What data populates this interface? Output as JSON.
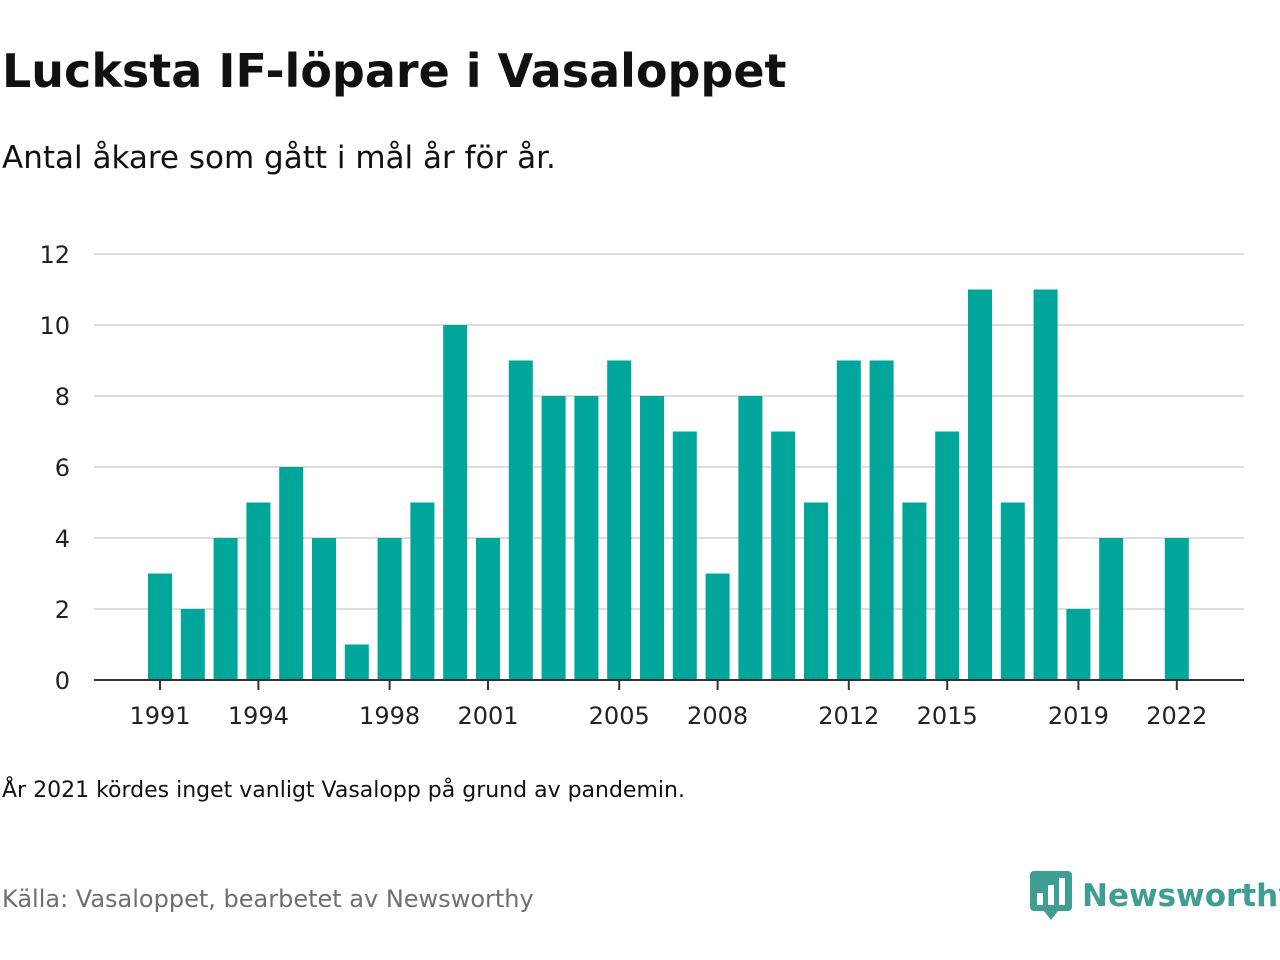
{
  "header": {
    "title": "Lucksta IF-löpare i Vasaloppet",
    "subtitle": "Antal åkare som gått i mål år för år."
  },
  "footer": {
    "note": "År 2021 kördes inget vanligt Vasalopp på grund av pandemin.",
    "source": "Källa: Vasaloppet, bearbetet av Newsworthy",
    "brand": "Newsworthy"
  },
  "colors": {
    "bar": "#00a699",
    "grid": "#dddddd",
    "baseline": "#333333",
    "brand": "#3f9d93"
  },
  "chart_data": {
    "type": "bar",
    "title": "Lucksta IF-löpare i Vasaloppet",
    "subtitle": "Antal åkare som gått i mål år för år.",
    "xlabel": "",
    "ylabel": "",
    "categories": [
      1991,
      1992,
      1993,
      1994,
      1995,
      1996,
      1997,
      1998,
      1999,
      2000,
      2001,
      2002,
      2003,
      2004,
      2005,
      2006,
      2007,
      2008,
      2009,
      2010,
      2011,
      2012,
      2013,
      2014,
      2015,
      2016,
      2017,
      2018,
      2019,
      2020,
      2021,
      2022
    ],
    "values": [
      3,
      2,
      4,
      5,
      6,
      4,
      1,
      4,
      5,
      10,
      4,
      9,
      8,
      8,
      9,
      8,
      7,
      3,
      8,
      7,
      5,
      9,
      9,
      5,
      7,
      11,
      5,
      11,
      2,
      4,
      null,
      4
    ],
    "x_tick_labels": [
      "1991",
      "1994",
      "1998",
      "2001",
      "2005",
      "2008",
      "2012",
      "2015",
      "2019",
      "2022"
    ],
    "y_ticks": [
      "0",
      "2",
      "4",
      "6",
      "8",
      "10",
      "12"
    ],
    "ylim": [
      0,
      12
    ],
    "grid": true,
    "legend": "none"
  }
}
